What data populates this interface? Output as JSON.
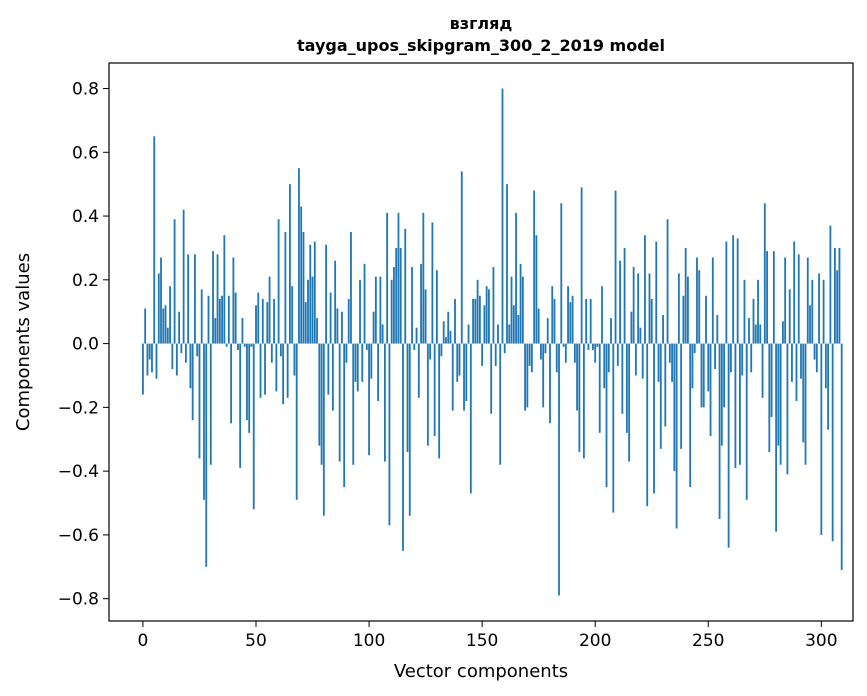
{
  "chart_data": {
    "type": "bar",
    "title": "взгляд",
    "subtitle": "tayga_upos_skipgram_300_2_2019 model",
    "xlabel": "Vector components",
    "ylabel": "Components values",
    "xlim": [
      -15,
      314
    ],
    "ylim": [
      -0.87,
      0.88
    ],
    "xticks": [
      0,
      50,
      100,
      150,
      200,
      250,
      300
    ],
    "yticks": [
      -0.8,
      -0.6,
      -0.4,
      -0.2,
      0.0,
      0.2,
      0.4,
      0.6,
      0.8
    ],
    "ytick_labels": [
      "−0.8",
      "−0.6",
      "−0.4",
      "−0.2",
      "0.0",
      "0.2",
      "0.4",
      "0.6",
      "0.8"
    ],
    "xtick_labels": [
      "0",
      "50",
      "100",
      "150",
      "200",
      "250",
      "300"
    ],
    "bar_color": "#1f77b4",
    "grid": false,
    "values": [
      -0.16,
      0.11,
      -0.1,
      -0.05,
      -0.09,
      0.65,
      -0.11,
      0.22,
      0.27,
      0.11,
      0.12,
      0.05,
      0.18,
      -0.08,
      0.39,
      -0.1,
      0.1,
      -0.03,
      0.42,
      -0.06,
      0.28,
      -0.14,
      -0.24,
      0.28,
      -0.04,
      -0.36,
      0.17,
      -0.49,
      -0.7,
      0.15,
      -0.38,
      0.29,
      0.08,
      0.28,
      0.14,
      0.15,
      0.34,
      -0.01,
      0.15,
      -0.25,
      0.27,
      0.16,
      -0.02,
      -0.39,
      0.08,
      -0.01,
      -0.24,
      -0.28,
      -0.01,
      -0.52,
      0.12,
      0.16,
      -0.17,
      0.14,
      -0.16,
      0.13,
      0.21,
      -0.06,
      0.14,
      -0.15,
      0.39,
      -0.04,
      -0.19,
      0.35,
      -0.17,
      0.5,
      0.18,
      -0.1,
      -0.49,
      0.55,
      0.43,
      0.35,
      0.13,
      0.2,
      0.31,
      0.21,
      0.32,
      0.08,
      -0.32,
      -0.38,
      -0.54,
      0.31,
      -0.16,
      0.16,
      -0.21,
      0.26,
      0.11,
      -0.37,
      0.1,
      -0.45,
      -0.06,
      0.14,
      0.35,
      -0.38,
      -0.12,
      -0.15,
      0.2,
      -0.12,
      0.25,
      -0.02,
      -0.35,
      -0.11,
      0.1,
      0.21,
      -0.18,
      0.21,
      0.06,
      -0.37,
      0.41,
      -0.57,
      0.2,
      0.24,
      0.3,
      0.41,
      0.3,
      -0.65,
      0.36,
      -0.34,
      -0.54,
      0.24,
      -0.02,
      0.05,
      -0.17,
      0.25,
      0.41,
      0.17,
      -0.32,
      -0.05,
      0.38,
      -0.29,
      0.23,
      -0.36,
      -0.04,
      0.07,
      0.02,
      0.1,
      0.04,
      -0.21,
      0.14,
      -0.12,
      -0.1,
      0.54,
      -0.21,
      -0.18,
      0.06,
      -0.47,
      0.14,
      0.14,
      0.2,
      0.15,
      -0.07,
      0.12,
      0.18,
      0.17,
      -0.22,
      0.24,
      -0.07,
      0.06,
      -0.38,
      0.8,
      -0.03,
      0.5,
      0.06,
      0.21,
      0.12,
      0.41,
      0.09,
      0.25,
      0.21,
      -0.21,
      -0.2,
      -0.07,
      -0.09,
      0.48,
      0.34,
      0.11,
      -0.05,
      -0.2,
      -0.03,
      0.08,
      -0.25,
      0.18,
      0.14,
      -0.09,
      -0.79,
      0.44,
      -0.01,
      -0.06,
      0.18,
      0.13,
      0.15,
      -0.06,
      -0.21,
      -0.34,
      0.49,
      -0.36,
      0.14,
      -0.02,
      0.14,
      -0.02,
      -0.06,
      -0.01,
      -0.28,
      0.18,
      -0.14,
      -0.45,
      -0.09,
      0.08,
      -0.53,
      0.48,
      -0.07,
      0.26,
      -0.22,
      0.3,
      -0.28,
      -0.37,
      0.1,
      0.24,
      -0.1,
      0.22,
      0.05,
      -0.11,
      0.34,
      -0.51,
      0.22,
      0.14,
      -0.47,
      0.32,
      -0.12,
      -0.33,
      0.09,
      -0.26,
      0.39,
      -0.06,
      -0.12,
      -0.4,
      -0.58,
      0.22,
      -0.33,
      0.15,
      0.3,
      0.21,
      -0.45,
      -0.14,
      -0.03,
      0.27,
      0.23,
      -0.2,
      -0.2,
      0.15,
      -0.15,
      -0.29,
      0.27,
      -0.08,
      0.09,
      -0.55,
      -0.32,
      -0.2,
      0.32,
      -0.64,
      -0.09,
      0.34,
      -0.39,
      0.33,
      -0.38,
      -0.1,
      0.2,
      -0.49,
      0.08,
      -0.09,
      0.14,
      0.06,
      0.2,
      0.06,
      -0.17,
      0.44,
      0.29,
      -0.34,
      -0.23,
      0.29,
      -0.59,
      -0.32,
      -0.38,
      0.07,
      0.27,
      -0.41,
      0.17,
      -0.12,
      0.32,
      -0.18,
      0.28,
      -0.11,
      -0.31,
      -0.38,
      0.27,
      0.12,
      0.2,
      -0.05,
      -0.09,
      0.22,
      -0.6,
      0.2,
      -0.14,
      -0.27,
      0.37,
      -0.62,
      0.3,
      0.23,
      0.3,
      -0.71
    ]
  }
}
